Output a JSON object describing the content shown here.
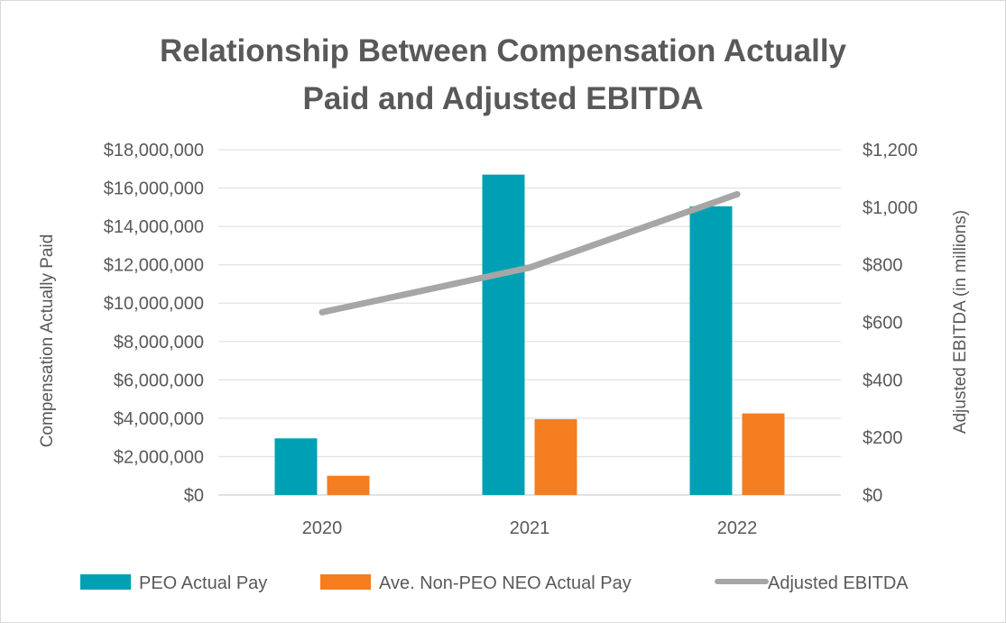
{
  "chart_data": {
    "type": "bar",
    "title": [
      "Relationship Between Compensation Actually",
      "Paid and Adjusted EBITDA"
    ],
    "categories": [
      "2020",
      "2021",
      "2022"
    ],
    "series": [
      {
        "name": "PEO Actual Pay",
        "type": "bar",
        "axis": "left",
        "color": "#00a0b4",
        "values": [
          2950000,
          16700000,
          15050000
        ]
      },
      {
        "name": "Ave. Non-PEO NEO Actual Pay",
        "type": "bar",
        "axis": "left",
        "color": "#f47d20",
        "values": [
          1000000,
          3950000,
          4250000
        ]
      },
      {
        "name": "Adjusted EBITDA",
        "type": "line",
        "axis": "right",
        "color": "#a6a6a6",
        "values": [
          635,
          790,
          1045
        ]
      }
    ],
    "ylabel": "Compensation Actually Paid",
    "y2label": "Adjusted EBITDA (in millions)",
    "ylim": [
      0,
      18000000
    ],
    "y2lim": [
      0,
      1200
    ],
    "yticks": [
      "$0",
      "$2,000,000",
      "$4,000,000",
      "$6,000,000",
      "$8,000,000",
      "$10,000,000",
      "$12,000,000",
      "$14,000,000",
      "$16,000,000",
      "$18,000,000"
    ],
    "y2ticks": [
      "$0",
      "$200",
      "$400",
      "$600",
      "$800",
      "$1,000",
      "$1,200"
    ],
    "grid": true,
    "legend_position": "bottom"
  }
}
